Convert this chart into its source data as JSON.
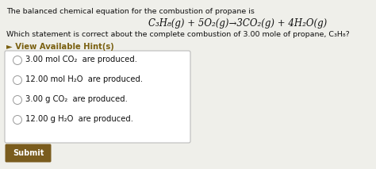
{
  "bg_color": "#efefea",
  "title_text": "The balanced chemical equation for the combustion of propane is",
  "equation": "C₃H₈(g) + 5O₂(g)→3CO₂(g) + 4H₂O(g)",
  "subtitle": "Which statement is correct about the complete combustion of 3.00 mole of propane, C₃H₈?",
  "hint_text": "► View Available Hint(s)",
  "hint_color": "#7a6010",
  "options": [
    "3.00 mol CO₂  are produced.",
    "12.00 mol H₂O  are produced.",
    "3.00 g CO₂  are produced.",
    "12.00 g H₂O  are produced."
  ],
  "submit_bg": "#7a5c1e",
  "submit_text": "Submit",
  "submit_text_color": "#ffffff",
  "box_bg": "#ffffff",
  "box_border": "#bbbbbb",
  "text_color": "#111111",
  "font_size_title": 6.8,
  "font_size_eq": 8.5,
  "font_size_options": 7.2,
  "font_size_hint": 7.2,
  "font_size_submit": 7.0
}
